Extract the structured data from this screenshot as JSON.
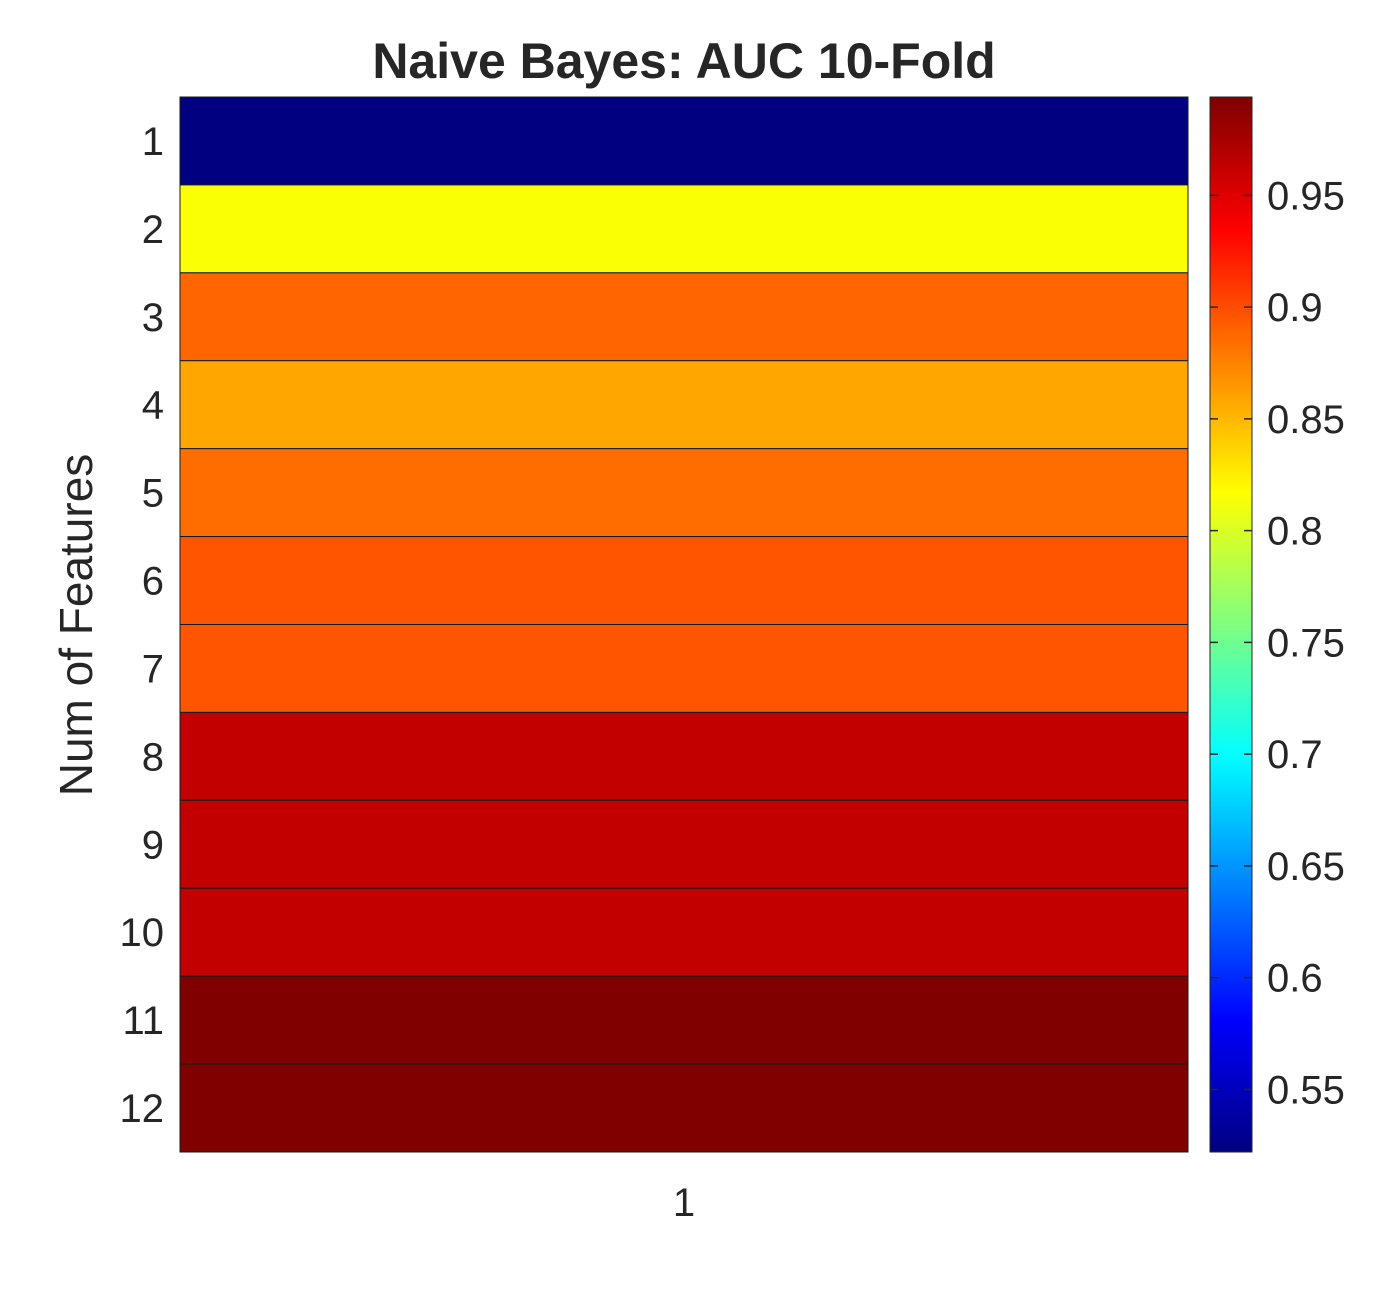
{
  "chart_data": {
    "type": "heatmap",
    "title": "Naive Bayes: AUC 10-Fold",
    "xlabel": "",
    "ylabel": "Num of Features",
    "x_categories": [
      "1"
    ],
    "y_categories": [
      "1",
      "2",
      "3",
      "4",
      "5",
      "6",
      "7",
      "8",
      "9",
      "10",
      "11",
      "12"
    ],
    "values": [
      0.522,
      0.815,
      0.888,
      0.858,
      0.885,
      0.896,
      0.896,
      0.963,
      0.963,
      0.963,
      0.994,
      0.994
    ],
    "colorbar": {
      "colormap": "jet",
      "range": [
        0.522,
        0.994
      ],
      "ticks": [
        0.55,
        0.6,
        0.65,
        0.7,
        0.75,
        0.8,
        0.85,
        0.9,
        0.95
      ],
      "tick_labels": [
        "0.55",
        "0.6",
        "0.65",
        "0.7",
        "0.75",
        "0.8",
        "0.85",
        "0.9",
        "0.95"
      ]
    }
  }
}
